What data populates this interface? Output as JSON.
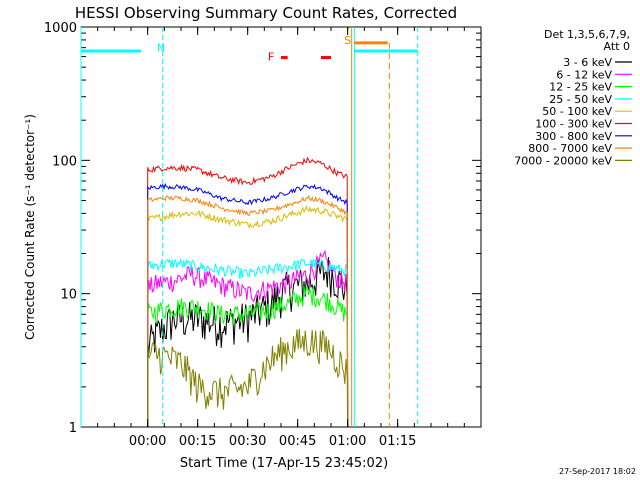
{
  "chart_data": {
    "type": "line",
    "title": "HESSI Observing Summary Count Rates, Corrected",
    "xlabel": "Start Time (17-Apr-15 23:45:02)",
    "ylabel": "Corrected Count Rate (s⁻¹ detector⁻¹)",
    "yscale": "log",
    "ylim": [
      1,
      1000
    ],
    "xlim_minutes": [
      -20,
      100
    ],
    "x_ticks": [
      {
        "label": "00:00",
        "minute": 0
      },
      {
        "label": "00:15",
        "minute": 15
      },
      {
        "label": "00:30",
        "minute": 30
      },
      {
        "label": "00:45",
        "minute": 45
      },
      {
        "label": "01:00",
        "minute": 60
      },
      {
        "label": "01:15",
        "minute": 75
      }
    ],
    "y_ticks": [
      {
        "label": "1",
        "value": 1
      },
      {
        "label": "10",
        "value": 10
      },
      {
        "label": "100",
        "value": 100
      },
      {
        "label": "1000",
        "value": 1000
      }
    ],
    "legend_header": [
      "Det 1,3,5,6,7,9,",
      "Att 0"
    ],
    "legend_position": "right",
    "series": [
      {
        "name": "3 - 6 keV",
        "color": "#000000",
        "points": [
          [
            0,
            4
          ],
          [
            3,
            5
          ],
          [
            8,
            6.5
          ],
          [
            15,
            6.5
          ],
          [
            22,
            6
          ],
          [
            30,
            6.5
          ],
          [
            36,
            8
          ],
          [
            42,
            11
          ],
          [
            48,
            12
          ],
          [
            54,
            15
          ],
          [
            58,
            12
          ],
          [
            60,
            10
          ]
        ]
      },
      {
        "name": "6 - 12 keV",
        "color": "#ff00ff",
        "points": [
          [
            0,
            11
          ],
          [
            3,
            12
          ],
          [
            8,
            12.5
          ],
          [
            13,
            14
          ],
          [
            20,
            12
          ],
          [
            30,
            10
          ],
          [
            36,
            11
          ],
          [
            42,
            12
          ],
          [
            48,
            14
          ],
          [
            53,
            18
          ],
          [
            57,
            13
          ],
          [
            60,
            12
          ]
        ]
      },
      {
        "name": "12 - 25 keV",
        "color": "#00ff00",
        "points": [
          [
            0,
            7
          ],
          [
            3,
            7.5
          ],
          [
            8,
            8
          ],
          [
            15,
            8
          ],
          [
            22,
            7
          ],
          [
            30,
            7
          ],
          [
            36,
            7.5
          ],
          [
            42,
            8.5
          ],
          [
            48,
            10
          ],
          [
            54,
            9
          ],
          [
            58,
            7.5
          ],
          [
            60,
            7
          ]
        ]
      },
      {
        "name": "25 - 50 keV",
        "color": "#00ffff",
        "points": [
          [
            0,
            16
          ],
          [
            3,
            16.5
          ],
          [
            8,
            17
          ],
          [
            15,
            16
          ],
          [
            22,
            15
          ],
          [
            30,
            14
          ],
          [
            36,
            15
          ],
          [
            42,
            16
          ],
          [
            48,
            17
          ],
          [
            54,
            16
          ],
          [
            58,
            15
          ],
          [
            60,
            15
          ]
        ]
      },
      {
        "name": "50 - 100 keV",
        "color": "#ddbb00",
        "points": [
          [
            0,
            36
          ],
          [
            5,
            38
          ],
          [
            10,
            40
          ],
          [
            15,
            40
          ],
          [
            22,
            36
          ],
          [
            30,
            33
          ],
          [
            37,
            35
          ],
          [
            44,
            40
          ],
          [
            48,
            43
          ],
          [
            52,
            42
          ],
          [
            57,
            38
          ],
          [
            60,
            36
          ]
        ]
      },
      {
        "name": "100 - 300 keV",
        "color": "#ff0000",
        "points": [
          [
            0,
            85
          ],
          [
            5,
            88
          ],
          [
            10,
            88
          ],
          [
            15,
            85
          ],
          [
            22,
            74
          ],
          [
            30,
            68
          ],
          [
            37,
            75
          ],
          [
            44,
            92
          ],
          [
            48,
            100
          ],
          [
            52,
            95
          ],
          [
            57,
            80
          ],
          [
            60,
            75
          ]
        ]
      },
      {
        "name": "300 - 800 keV",
        "color": "#0000ff",
        "points": [
          [
            0,
            62
          ],
          [
            5,
            64
          ],
          [
            10,
            63
          ],
          [
            15,
            60
          ],
          [
            22,
            52
          ],
          [
            30,
            48
          ],
          [
            37,
            52
          ],
          [
            44,
            60
          ],
          [
            48,
            64
          ],
          [
            52,
            62
          ],
          [
            57,
            52
          ],
          [
            60,
            48
          ]
        ]
      },
      {
        "name": "800 - 7000 keV",
        "color": "#ff8000",
        "points": [
          [
            0,
            50
          ],
          [
            5,
            52
          ],
          [
            10,
            52
          ],
          [
            15,
            50
          ],
          [
            22,
            44
          ],
          [
            30,
            40
          ],
          [
            37,
            42
          ],
          [
            44,
            48
          ],
          [
            48,
            52
          ],
          [
            52,
            50
          ],
          [
            57,
            44
          ],
          [
            60,
            40
          ]
        ]
      },
      {
        "name": "7000 - 20000 keV",
        "color": "#808000",
        "points": [
          [
            0,
            3.5
          ],
          [
            4,
            3.5
          ],
          [
            10,
            3
          ],
          [
            15,
            2
          ],
          [
            22,
            1.8
          ],
          [
            30,
            2
          ],
          [
            36,
            3
          ],
          [
            42,
            4
          ],
          [
            48,
            4.5
          ],
          [
            54,
            4
          ],
          [
            58,
            3
          ],
          [
            60,
            2.5
          ]
        ]
      }
    ],
    "annotations": [
      {
        "text": "N",
        "color": "#00ffff",
        "minute": 4,
        "y": 700
      },
      {
        "text": "F",
        "color": "#ff0000",
        "minute": 37,
        "y": 600
      },
      {
        "text": "S",
        "color": "#ff8000",
        "minute": 60,
        "y": 800
      }
    ]
  },
  "footer": {
    "timestamp": "27-Sep-2017 18:02"
  }
}
